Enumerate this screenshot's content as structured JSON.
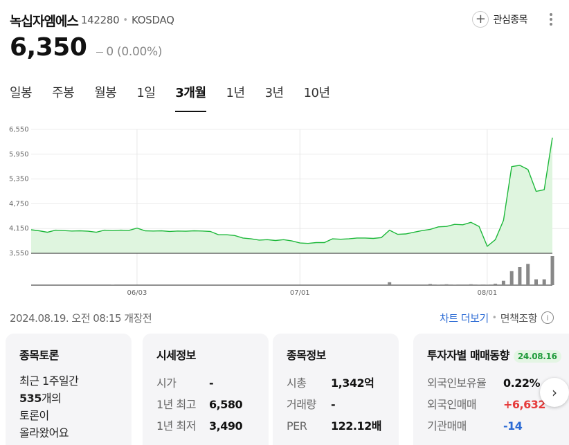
{
  "header": {
    "name": "녹십자엠에스",
    "code": "142280",
    "separator": "•",
    "market": "KOSDAQ",
    "watch_label": "관심종목",
    "watch_icon": "plus-icon",
    "more_icon": "more-vertical-icon"
  },
  "price": {
    "current": "6,350",
    "change": "0 (0.00%)",
    "change_icon": "flat-dash-icon"
  },
  "tabs": [
    {
      "label": "일봉",
      "active": false
    },
    {
      "label": "주봉",
      "active": false
    },
    {
      "label": "월봉",
      "active": false
    },
    {
      "label": "1일",
      "active": false
    },
    {
      "label": "3개월",
      "active": true
    },
    {
      "label": "1년",
      "active": false
    },
    {
      "label": "3년",
      "active": false
    },
    {
      "label": "10년",
      "active": false
    }
  ],
  "chart_data": {
    "type": "area",
    "title": "",
    "xlabel": "",
    "ylabel": "",
    "y_ticks": [
      "6,550",
      "5,950",
      "5,350",
      "4,750",
      "4,150",
      "3,550"
    ],
    "x_ticks": [
      "06/03",
      "07/01",
      "08/01"
    ],
    "ylim": [
      3550,
      6550
    ],
    "line_color": "#1db83a",
    "fill_color": "#dff5df",
    "volume_color": "#888888",
    "grid": true,
    "price_series": [
      4120,
      4095,
      4060,
      4110,
      4100,
      4090,
      4095,
      4085,
      4060,
      4110,
      4100,
      4110,
      4105,
      4160,
      4095,
      4090,
      4095,
      4080,
      4090,
      4085,
      4095,
      4090,
      4080,
      4000,
      4000,
      3980,
      3920,
      3900,
      3870,
      3880,
      3860,
      3880,
      3850,
      3800,
      3790,
      3810,
      3810,
      3900,
      3890,
      3900,
      3920,
      3920,
      3910,
      3930,
      4110,
      4010,
      4020,
      4060,
      4100,
      4130,
      4190,
      4200,
      4250,
      4240,
      4300,
      4200,
      3720,
      3880,
      4350,
      5650,
      5680,
      5580,
      5050,
      5090,
      6350
    ],
    "volume_series": [
      0,
      0,
      0,
      0,
      0,
      0,
      0,
      0,
      0,
      0,
      0.02,
      0,
      0,
      0,
      0,
      0,
      0,
      0,
      0,
      0,
      0,
      0,
      0,
      0,
      0,
      0,
      0,
      0,
      0,
      0,
      0,
      0,
      0,
      0,
      0,
      0,
      0,
      0,
      0,
      0,
      0,
      0,
      0,
      0,
      0.1,
      0,
      0,
      0,
      0,
      0.04,
      0.02,
      0.03,
      0.02,
      0,
      0.03,
      0.02,
      0.02,
      0.05,
      0.15,
      0.48,
      0.62,
      0.73,
      0.2,
      0.2,
      1.0
    ]
  },
  "footer": {
    "datetime": "2024.08.19. 오전 08:15 개장전",
    "chart_more": "차트 더보기",
    "separator": "•",
    "disclaimer": "면책조항",
    "info_icon": "info-icon"
  },
  "cards": {
    "discussion": {
      "title": "종목토론",
      "line1": "최근 1주일간",
      "count": "535",
      "count_suffix": "개의",
      "line3": "토론이",
      "line4": "올라왔어요"
    },
    "market_info": {
      "title": "시세정보",
      "rows": [
        {
          "key": "시가",
          "value": "-"
        },
        {
          "key": "1년 최고",
          "value": "6,580"
        },
        {
          "key": "1년 최저",
          "value": "3,490"
        }
      ]
    },
    "stock_info": {
      "title": "종목정보",
      "rows": [
        {
          "key": "시총",
          "value": "1,342억"
        },
        {
          "key": "거래량",
          "value": "-"
        },
        {
          "key": "PER",
          "value": "122.12배"
        }
      ]
    },
    "investor": {
      "title": "투자자별 매매동향",
      "date": "24.08.16",
      "rows": [
        {
          "key": "외국인보유율",
          "value": "0.22%"
        },
        {
          "key": "외국인매매",
          "value": "+6,632"
        },
        {
          "key": "기관매매",
          "value": "-14"
        }
      ],
      "colors": {
        "up": "#e63b3b",
        "down": "#2a6ad4"
      }
    }
  },
  "next_icon": "chevron-right-icon"
}
